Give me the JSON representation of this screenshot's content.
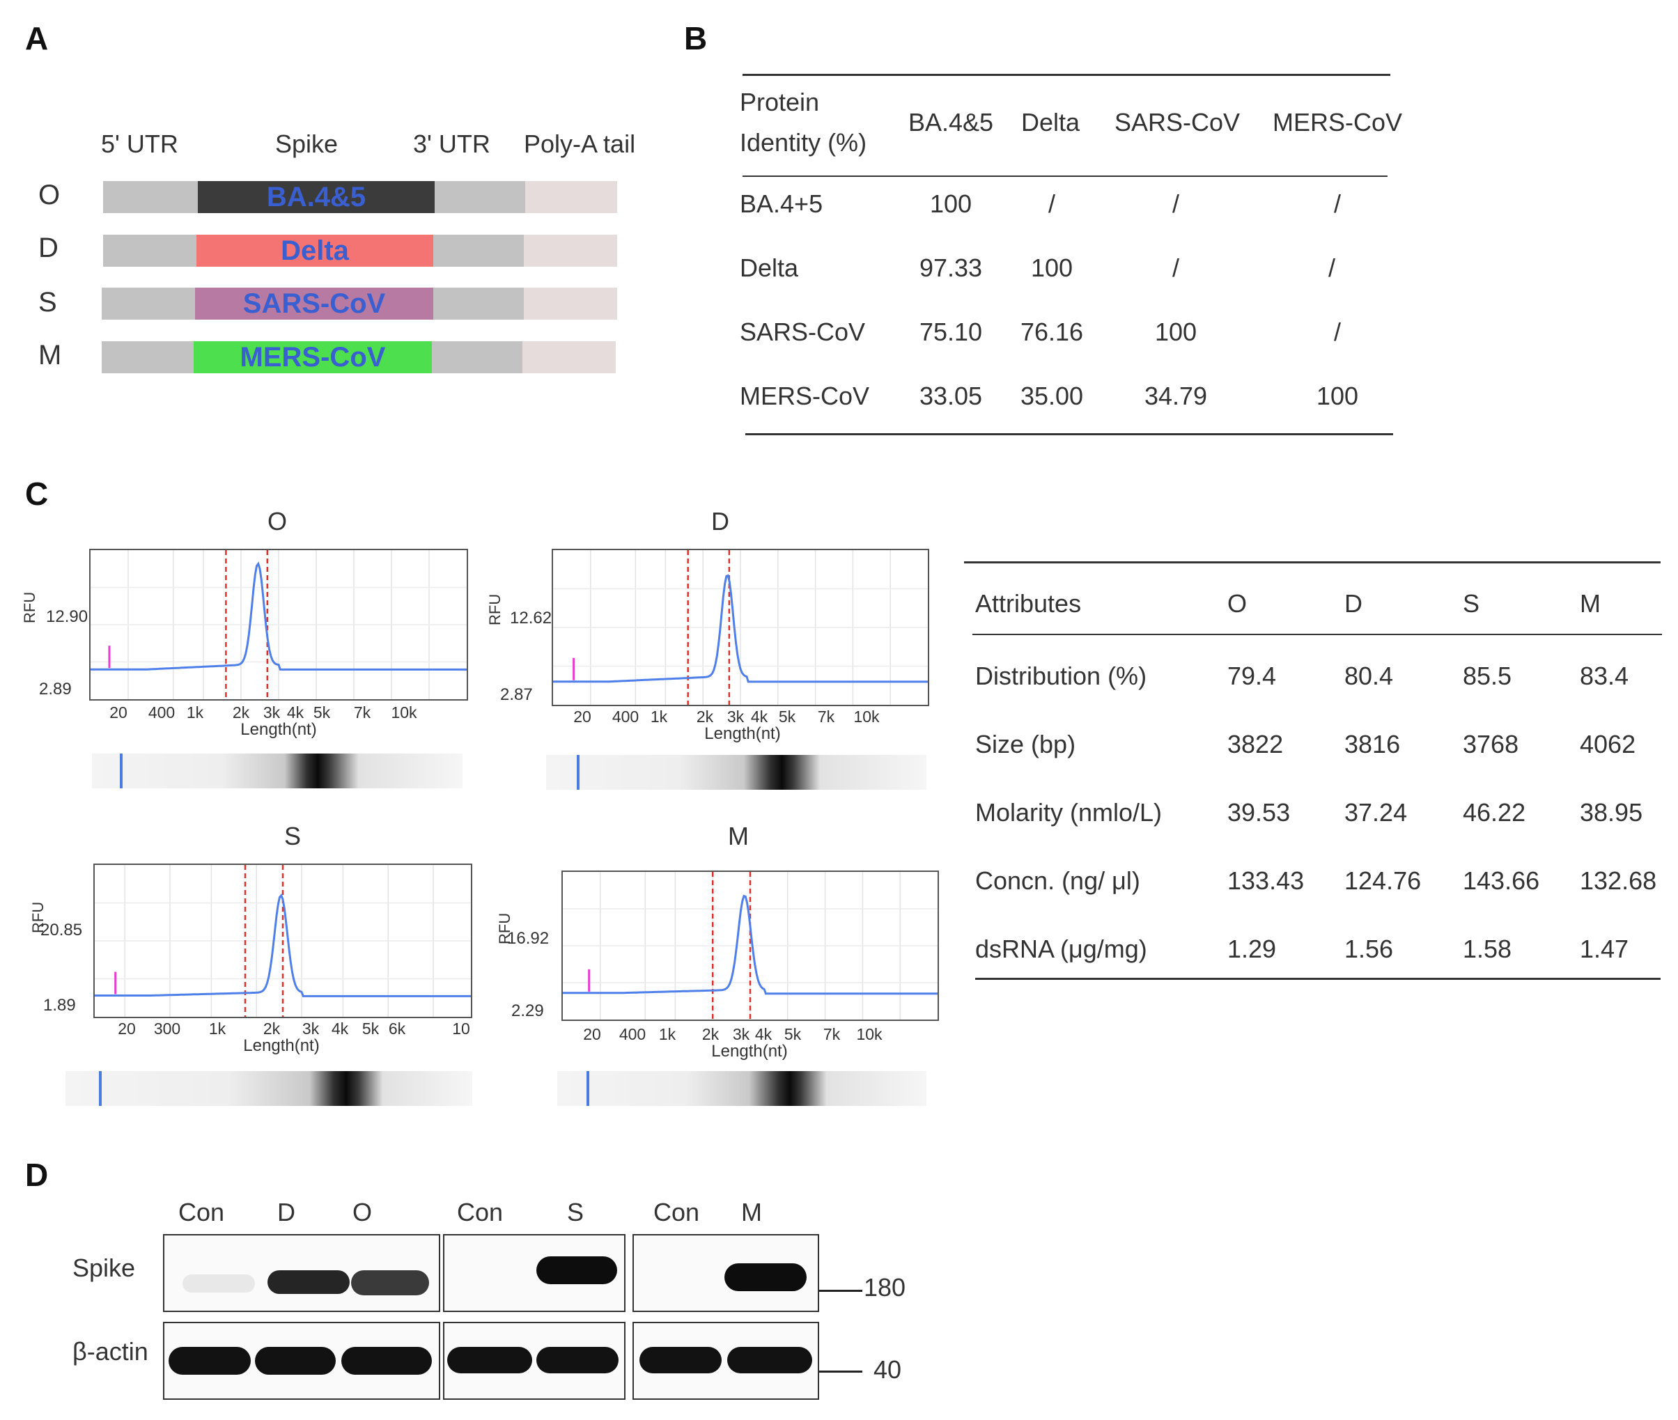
{
  "panels": {
    "a": "A",
    "b": "B",
    "c": "C",
    "d": "D"
  },
  "panel_a": {
    "headers": [
      "5' UTR",
      "Spike",
      "3' UTR",
      "Poly-A tail"
    ],
    "rows": [
      {
        "label": "O",
        "spike_text": "BA.4&5",
        "spike_color": "#3b3b3b"
      },
      {
        "label": "D",
        "spike_text": "Delta",
        "spike_color": "#f47373"
      },
      {
        "label": "S",
        "spike_text": "SARS-CoV",
        "spike_color": "#b77aa3"
      },
      {
        "label": "M",
        "spike_text": "MERS-CoV",
        "spike_color": "#4ddf4d"
      }
    ],
    "utr_color": "#c2c2c2",
    "polya_color": "#e7dcdc",
    "label_color": "#3a5fd0"
  },
  "panel_b": {
    "header_line1": "Protein",
    "header_line2": "Identity (%)",
    "columns": [
      "BA.4&5",
      "Delta",
      "SARS-CoV",
      "MERS-CoV"
    ],
    "rows": [
      {
        "name": "BA.4+5",
        "values": [
          "100",
          "/",
          "/",
          "/"
        ]
      },
      {
        "name": "Delta",
        "values": [
          "97.33",
          "100",
          "/",
          "/"
        ]
      },
      {
        "name": "SARS-CoV",
        "values": [
          "75.10",
          "76.16",
          "100",
          "/"
        ]
      },
      {
        "name": "MERS-CoV",
        "values": [
          "33.05",
          "35.00",
          "34.79",
          "100"
        ]
      }
    ]
  },
  "panel_c": {
    "table": {
      "headers": [
        "Attributes",
        "O",
        "D",
        "S",
        "M"
      ],
      "rows": [
        {
          "name": "Distribution  (%)",
          "values": [
            "79.4",
            "80.4",
            "85.5",
            "83.4"
          ]
        },
        {
          "name": "Size  (bp)",
          "values": [
            "3822",
            "3816",
            "3768",
            "4062"
          ]
        },
        {
          "name": "Molarity  (nmlo/L)",
          "values": [
            "39.53",
            "37.24",
            "46.22",
            "38.95"
          ]
        },
        {
          "name": "Concn.  (ng/ μl)",
          "values": [
            "133.43",
            "124.76",
            "143.66",
            "132.68"
          ]
        },
        {
          "name": "dsRNA  (μg/mg)",
          "values": [
            "1.29",
            "1.56",
            "1.58",
            "1.47"
          ]
        }
      ]
    }
  },
  "chart_data": [
    {
      "type": "line",
      "title": "O",
      "ylabel": "RFU",
      "xlabel": "Length(nt)",
      "y_tick_labels": [
        "12.90",
        "2.89"
      ],
      "x_tick_labels": [
        "20",
        "400",
        "1k",
        "2k",
        "3k",
        "4k",
        "5k",
        "7k",
        "10k"
      ]
    },
    {
      "type": "line",
      "title": "D",
      "ylabel": "RFU",
      "xlabel": "Length(nt)",
      "y_tick_labels": [
        "12.62",
        "2.87"
      ],
      "x_tick_labels": [
        "20",
        "400",
        "1k",
        "2k",
        "3k",
        "4k",
        "5k",
        "7k",
        "10k"
      ]
    },
    {
      "type": "line",
      "title": "S",
      "ylabel": "RFU",
      "xlabel": "Length(nt)",
      "y_tick_labels": [
        "20.85",
        "1.89"
      ],
      "x_tick_labels": [
        "20",
        "300",
        "1k",
        "2k",
        "3k",
        "4k",
        "5k",
        "6k",
        "10"
      ]
    },
    {
      "type": "line",
      "title": "M",
      "ylabel": "RFU",
      "xlabel": "Length(nt)",
      "y_tick_labels": [
        "16.92",
        "2.29"
      ],
      "x_tick_labels": [
        "20",
        "400",
        "1k",
        "2k",
        "3k",
        "4k",
        "5k",
        "7k",
        "10k"
      ]
    }
  ],
  "panel_d": {
    "lanes_1": [
      "Con",
      "D",
      "O"
    ],
    "lanes_2": [
      "Con",
      "S"
    ],
    "lanes_3": [
      "Con",
      "M"
    ],
    "row_labels": [
      "Spike",
      "β-actin"
    ],
    "markers": [
      "180",
      "40"
    ]
  }
}
